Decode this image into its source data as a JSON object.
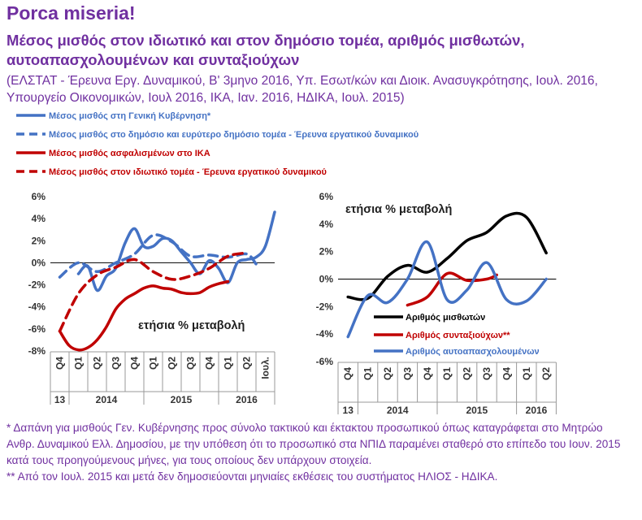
{
  "header": {
    "title": "Porca miseria!",
    "subtitle": "Μέσος μισθός στον ιδιωτικό και στον δημόσιο τομέα, αριθμός μισθωτών, αυτοαπασχολουμένων και συνταξιούχων",
    "source": "(ΕΛΣΤΑΤ - Έρευνα Εργ. Δυναμικού, Β' 3μηνο 2016, Υπ. Εσωτ/κών και Διοικ. Ανασυγκρότησης, Ιουλ. 2016, Υπουργείο Οικονομικών, Ιουλ 2016, ΙΚΑ, Ιαν. 2016, ΗΔΙΚΑ, Ιουλ. 2015)"
  },
  "footnotes": [
    "* Δαπάνη για μισθούς Γεν. Κυβέρνησης προς σύνολο τακτικού και έκτακτου προσωπικού όπως καταγράφεται στο Μητρώο Ανθρ. Δυναμικού Ελλ. Δημοσίου, με την υπόθεση ότι το προσωπικό στα ΝΠΙΔ παραμένει σταθερό στο επίπεδο του Ιουν. 2015 κατά τους προηγούμενους μήνες, για τους οποίους δεν υπάρχουν στοιχεία.",
    "** Από τον Ιουλ. 2015 και μετά δεν δημοσιεύονται μηνιαίες εκθέσεις του συστήματος ΗΛΙΟΣ - ΗΔΙΚΑ."
  ],
  "colors": {
    "title": "#7030a0",
    "blue": "#4472c4",
    "red": "#c00000",
    "black": "#000000"
  },
  "chart_data": [
    {
      "type": "line",
      "annotation": "ετήσια % μεταβολή",
      "y_ticks": [
        "6%",
        "4%",
        "2%",
        "0%",
        "-2%",
        "-4%",
        "-6%",
        "-8%"
      ],
      "ylim": [
        -8,
        6
      ],
      "x_ticks": [
        "Q4",
        "Q1",
        "Q2",
        "Q3",
        "Q4",
        "Q1",
        "Q2",
        "Q3",
        "Q4",
        "Q1",
        "Q2",
        "Ιουλ."
      ],
      "x_groups": [
        "13",
        "2014",
        "2015",
        "2016"
      ],
      "legend_position": "top",
      "series": [
        {
          "name": "Μέσος μισθός στη Γενική Κυβέρνηση*",
          "color": "#4472c4",
          "dash": false,
          "points": [
            [
              1,
              -1.0
            ],
            [
              1.5,
              -0.3
            ],
            [
              2,
              -2.5
            ],
            [
              2.5,
              -1.2
            ],
            [
              3,
              -0.5
            ],
            [
              3.5,
              1.8
            ],
            [
              4,
              3.1
            ],
            [
              4.5,
              1.5
            ],
            [
              5,
              1.5
            ],
            [
              5.5,
              2.2
            ],
            [
              6,
              2.0
            ],
            [
              6.5,
              1.0
            ],
            [
              7,
              0.0
            ],
            [
              7.5,
              -1.0
            ],
            [
              8,
              0.2
            ],
            [
              8.5,
              -0.5
            ],
            [
              9,
              -1.8
            ],
            [
              9.5,
              0.0
            ],
            [
              10,
              0.3
            ],
            [
              10.5,
              0.5
            ],
            [
              11,
              1.5
            ],
            [
              11.5,
              4.6
            ]
          ]
        },
        {
          "name": "Μέσος μισθός στο δημόσιο και ευρύτερο δημόσιο τομέα - Έρευνα εργατικού δυναμικού",
          "color": "#4472c4",
          "dash": true,
          "points": [
            [
              0,
              -1.3
            ],
            [
              1,
              0.0
            ],
            [
              2,
              -0.8
            ],
            [
              3,
              0.0
            ],
            [
              4,
              0.8
            ],
            [
              5,
              2.5
            ],
            [
              6,
              1.9
            ],
            [
              7,
              0.6
            ],
            [
              8,
              0.7
            ],
            [
              9,
              0.5
            ],
            [
              10,
              0.8
            ],
            [
              10.5,
              -0.1
            ]
          ]
        },
        {
          "name": "Μέσος μισθός ασφαλισμένων στο ΙΚΑ",
          "color": "#c00000",
          "dash": false,
          "points": [
            [
              0,
              -6.2
            ],
            [
              0.5,
              -7.5
            ],
            [
              1,
              -7.9
            ],
            [
              1.5,
              -7.7
            ],
            [
              2,
              -7.0
            ],
            [
              2.5,
              -5.8
            ],
            [
              3,
              -4.2
            ],
            [
              3.5,
              -3.3
            ],
            [
              4,
              -2.8
            ],
            [
              4.5,
              -2.3
            ],
            [
              5,
              -2.1
            ],
            [
              5.5,
              -2.3
            ],
            [
              6,
              -2.4
            ],
            [
              6.5,
              -2.7
            ],
            [
              7,
              -2.8
            ],
            [
              7.5,
              -2.7
            ],
            [
              8,
              -2.2
            ],
            [
              8.5,
              -1.9
            ],
            [
              9,
              -1.7
            ]
          ]
        },
        {
          "name": "Μέσος μισθός στον ιδιωτικό τομέα - Έρευνα εργατικού δυναμικού",
          "color": "#c00000",
          "dash": true,
          "points": [
            [
              0,
              -6.2
            ],
            [
              1,
              -2.8
            ],
            [
              2,
              -1.1
            ],
            [
              3,
              -0.4
            ],
            [
              4,
              0.3
            ],
            [
              5,
              -0.8
            ],
            [
              6,
              -1.5
            ],
            [
              7,
              -1.2
            ],
            [
              8,
              -0.5
            ],
            [
              9,
              0.6
            ],
            [
              10,
              0.9
            ]
          ]
        }
      ]
    },
    {
      "type": "line",
      "annotation": "ετήσια % μεταβολή",
      "y_ticks": [
        "6%",
        "4%",
        "2%",
        "0%",
        "-2%",
        "-4%",
        "-6%"
      ],
      "ylim": [
        -6,
        6
      ],
      "x_ticks": [
        "Q4",
        "Q1",
        "Q2",
        "Q3",
        "Q4",
        "Q1",
        "Q2",
        "Q3",
        "Q4",
        "Q1",
        "Q2"
      ],
      "x_groups": [
        "13",
        "2014",
        "2015",
        "2016"
      ],
      "legend_position": "bottom-right",
      "series": [
        {
          "name": "Αριθμός μισθωτών",
          "color": "#000000",
          "dash": false,
          "points": [
            [
              0,
              -1.3
            ],
            [
              1,
              -1.4
            ],
            [
              2,
              0.2
            ],
            [
              3,
              1.0
            ],
            [
              4,
              0.5
            ],
            [
              5,
              1.5
            ],
            [
              6,
              2.8
            ],
            [
              7,
              3.4
            ],
            [
              8,
              4.6
            ],
            [
              9,
              4.5
            ],
            [
              10,
              1.9
            ]
          ]
        },
        {
          "name": "Αριθμός συνταξιούχων**",
          "color": "#c00000",
          "dash": false,
          "points": [
            [
              3,
              -1.9
            ],
            [
              4,
              -1.3
            ],
            [
              5,
              0.4
            ],
            [
              6,
              -0.1
            ],
            [
              7,
              0.0
            ],
            [
              7.5,
              0.3
            ]
          ]
        },
        {
          "name": "Αριθμός αυτοαπασχολουμένων",
          "color": "#4472c4",
          "dash": false,
          "points": [
            [
              0,
              -4.2
            ],
            [
              1,
              -1.2
            ],
            [
              2,
              -1.7
            ],
            [
              3,
              0.0
            ],
            [
              4,
              2.7
            ],
            [
              5,
              -1.5
            ],
            [
              6,
              -0.8
            ],
            [
              7,
              1.2
            ],
            [
              8,
              -1.5
            ],
            [
              9,
              -1.6
            ],
            [
              10,
              0.0
            ]
          ]
        }
      ]
    }
  ]
}
